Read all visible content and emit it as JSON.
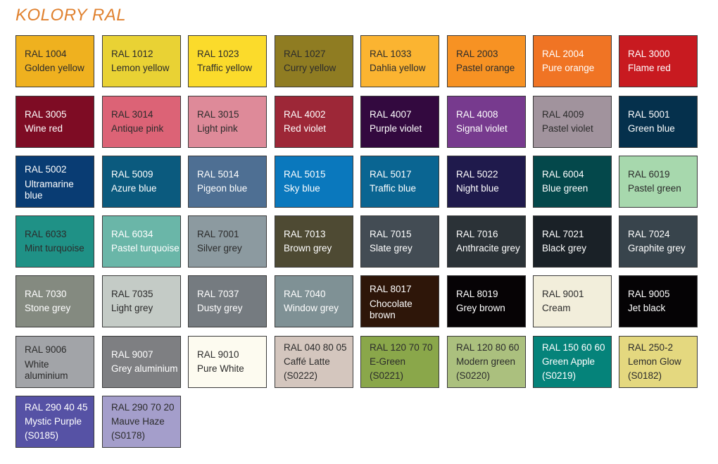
{
  "title": "KOLORY RAL",
  "swatches": [
    {
      "lines": [
        "RAL 1004",
        "Golden yellow"
      ],
      "color": "#efb11f",
      "text": "#2b2b2b"
    },
    {
      "lines": [
        "RAL 1012",
        "Lemon yellow"
      ],
      "color": "#e9d234",
      "text": "#2b2b2b"
    },
    {
      "lines": [
        "RAL 1023",
        "Traffic yellow"
      ],
      "color": "#fbdb2b",
      "text": "#2b2b2b"
    },
    {
      "lines": [
        "RAL 1027",
        "Curry yellow"
      ],
      "color": "#8f7c22",
      "text": "#2b2b2b"
    },
    {
      "lines": [
        "RAL 1033",
        "Dahlia yellow"
      ],
      "color": "#fbb431",
      "text": "#2b2b2b"
    },
    {
      "lines": [
        "RAL 2003",
        "Pastel orange"
      ],
      "color": "#f79223",
      "text": "#2b2b2b"
    },
    {
      "lines": [
        "RAL 2004",
        "Pure orange"
      ],
      "color": "#f07424",
      "text": "#ffffff"
    },
    {
      "lines": [
        "RAL 3000",
        "Flame red"
      ],
      "color": "#c81a20",
      "text": "#ffffff"
    },
    {
      "lines": [
        "RAL 3005",
        "Wine red"
      ],
      "color": "#7e0c24",
      "text": "#ffffff"
    },
    {
      "lines": [
        "RAL 3014",
        "Antique pink"
      ],
      "color": "#dc6376",
      "text": "#2b2b2b"
    },
    {
      "lines": [
        "RAL 3015",
        "Light pink"
      ],
      "color": "#de8a99",
      "text": "#2b2b2b"
    },
    {
      "lines": [
        "RAL 4002",
        "Red violet"
      ],
      "color": "#9d2737",
      "text": "#ffffff"
    },
    {
      "lines": [
        "RAL 4007",
        "Purple violet"
      ],
      "color": "#33093f",
      "text": "#ffffff"
    },
    {
      "lines": [
        "RAL 4008",
        "Signal violet"
      ],
      "color": "#773a8e",
      "text": "#ffffff"
    },
    {
      "lines": [
        "RAL 4009",
        "Pastel violet"
      ],
      "color": "#a1939d",
      "text": "#2b2b2b"
    },
    {
      "lines": [
        "RAL 5001",
        "Green blue"
      ],
      "color": "#05304c",
      "text": "#ffffff"
    },
    {
      "lines": [
        "RAL 5002",
        "Ultramarine",
        "blue"
      ],
      "color": "#093c73",
      "text": "#ffffff"
    },
    {
      "lines": [
        "RAL 5009",
        "Azure blue"
      ],
      "color": "#0b5a7e",
      "text": "#ffffff"
    },
    {
      "lines": [
        "RAL 5014",
        "Pigeon blue"
      ],
      "color": "#4e6f93",
      "text": "#ffffff"
    },
    {
      "lines": [
        "RAL 5015",
        "Sky blue"
      ],
      "color": "#0a78bd",
      "text": "#ffffff"
    },
    {
      "lines": [
        "RAL 5017",
        "Traffic blue"
      ],
      "color": "#0a6592",
      "text": "#ffffff"
    },
    {
      "lines": [
        "RAL 5022",
        "Night blue"
      ],
      "color": "#1f1a4c",
      "text": "#ffffff"
    },
    {
      "lines": [
        "RAL 6004",
        "Blue green"
      ],
      "color": "#04484b",
      "text": "#ffffff"
    },
    {
      "lines": [
        "RAL 6019",
        "Pastel green"
      ],
      "color": "#a7d8ad",
      "text": "#2b2b2b"
    },
    {
      "lines": [
        "RAL 6033",
        "Mint turquoise"
      ],
      "color": "#1f9186",
      "text": "#2b2b2b"
    },
    {
      "lines": [
        "RAL 6034",
        "Pastel turquoise"
      ],
      "color": "#6ab6a8",
      "text": "#ffffff"
    },
    {
      "lines": [
        "RAL 7001",
        "Silver grey"
      ],
      "color": "#8c9aa0",
      "text": "#2b2b2b"
    },
    {
      "lines": [
        "RAL 7013",
        "Brown grey"
      ],
      "color": "#4e4a33",
      "text": "#ffffff"
    },
    {
      "lines": [
        "RAL 7015",
        "Slate grey"
      ],
      "color": "#434c54",
      "text": "#ffffff"
    },
    {
      "lines": [
        "RAL 7016",
        "Anthracite grey"
      ],
      "color": "#2b3237",
      "text": "#ffffff"
    },
    {
      "lines": [
        "RAL 7021",
        "Black grey"
      ],
      "color": "#1a2127",
      "text": "#ffffff"
    },
    {
      "lines": [
        "RAL 7024",
        "Graphite grey"
      ],
      "color": "#38444c",
      "text": "#ffffff"
    },
    {
      "lines": [
        "RAL 7030",
        "Stone grey"
      ],
      "color": "#848a80",
      "text": "#ffffff"
    },
    {
      "lines": [
        "RAL 7035",
        "Light grey"
      ],
      "color": "#c4cbc6",
      "text": "#2b2b2b"
    },
    {
      "lines": [
        "RAL 7037",
        "Dusty grey"
      ],
      "color": "#757b80",
      "text": "#ffffff"
    },
    {
      "lines": [
        "RAL 7040",
        "Window grey"
      ],
      "color": "#7f9195",
      "text": "#ffffff"
    },
    {
      "lines": [
        "RAL 8017",
        "Chocolate",
        "brown"
      ],
      "color": "#2e1609",
      "text": "#ffffff"
    },
    {
      "lines": [
        "RAL 8019",
        "Grey brown"
      ],
      "color": "#060305",
      "text": "#ffffff"
    },
    {
      "lines": [
        "RAL 9001",
        "Cream"
      ],
      "color": "#f2eedb",
      "text": "#2b2b2b"
    },
    {
      "lines": [
        "RAL 9005",
        "Jet black"
      ],
      "color": "#050305",
      "text": "#ffffff"
    },
    {
      "lines": [
        "RAL 9006",
        "White",
        "aluminium"
      ],
      "color": "#a2a4a8",
      "text": "#2b2b2b"
    },
    {
      "lines": [
        "RAL 9007",
        "Grey aluminium"
      ],
      "color": "#7e7f82",
      "text": "#ffffff"
    },
    {
      "lines": [
        "RAL 9010",
        "Pure White"
      ],
      "color": "#fdfbf0",
      "text": "#2b2b2b"
    },
    {
      "lines": [
        "RAL 040 80 05",
        "Caffé Latte",
        "(S0222)"
      ],
      "color": "#d4c6be",
      "text": "#2b2b2b"
    },
    {
      "lines": [
        "RAL 120 70 70",
        "E-Green",
        "(S0221)"
      ],
      "color": "#8aa74a",
      "text": "#2b2b2b"
    },
    {
      "lines": [
        "RAL 120 80 60",
        "Modern green",
        "(S0220)"
      ],
      "color": "#abc07e",
      "text": "#2b2b2b"
    },
    {
      "lines": [
        "RAL 150 60 60",
        "Green Apple",
        "(S0219)"
      ],
      "color": "#05837a",
      "text": "#ffffff"
    },
    {
      "lines": [
        "RAL 250-2",
        "Lemon Glow",
        "(S0182)"
      ],
      "color": "#e4d87f",
      "text": "#2b2b2b"
    },
    {
      "lines": [
        "RAL 290 40 45",
        "Mystic Purple",
        "(S0185)"
      ],
      "color": "#5652a5",
      "text": "#ffffff"
    },
    {
      "lines": [
        "RAL 290 70 20",
        "Mauve Haze",
        "(S0178)"
      ],
      "color": "#a49ecb",
      "text": "#2b2b2b"
    }
  ]
}
